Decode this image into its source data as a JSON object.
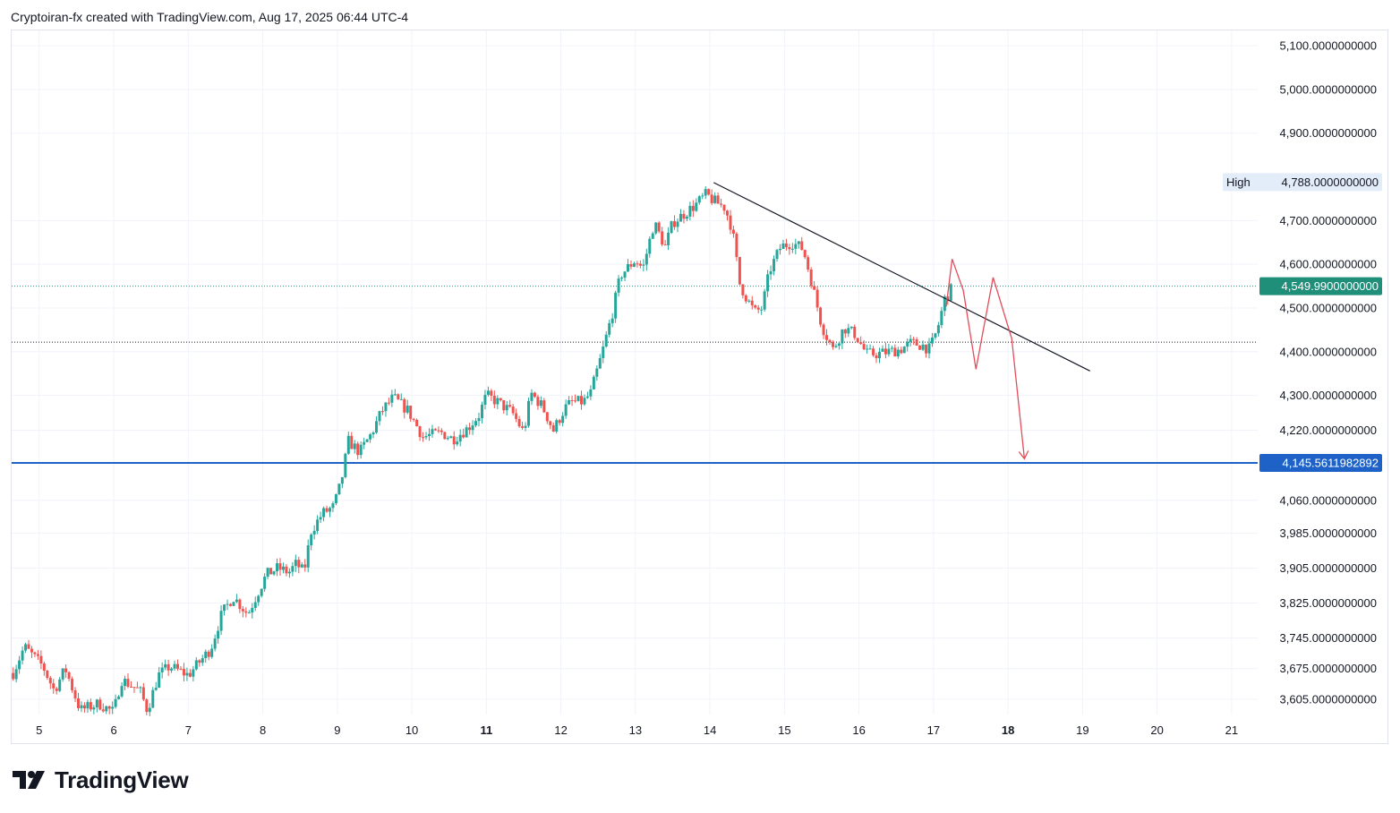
{
  "header": {
    "attribution": "Cryptoiran-fx created with TradingView.com, Aug 17, 2025 06:44 UTC-4"
  },
  "brand": {
    "name": "TradingView"
  },
  "colors": {
    "up": "#26a69a",
    "down": "#ef5350",
    "support_line": "#1e62c7",
    "trendline": "#131722",
    "projection": "#e34c5a",
    "last_price_badge": "#1f8f7a",
    "high_badge_bg": "#e3ecf9",
    "grid": "#f0f3fa"
  },
  "chart_data": {
    "type": "candlestick",
    "ylim": [
      3570,
      5135
    ],
    "y_ticks": [
      {
        "value": 5100,
        "label": "5,100.0000000000"
      },
      {
        "value": 5000,
        "label": "5,000.0000000000"
      },
      {
        "value": 4900,
        "label": "4,900.0000000000"
      },
      {
        "value": 4700,
        "label": "4,700.0000000000"
      },
      {
        "value": 4600,
        "label": "4,600.0000000000"
      },
      {
        "value": 4500,
        "label": "4,500.0000000000"
      },
      {
        "value": 4400,
        "label": "4,400.0000000000"
      },
      {
        "value": 4300,
        "label": "4,300.0000000000"
      },
      {
        "value": 4220,
        "label": "4,220.0000000000"
      },
      {
        "value": 4060,
        "label": "4,060.0000000000"
      },
      {
        "value": 3985,
        "label": "3,985.0000000000"
      },
      {
        "value": 3905,
        "label": "3,905.0000000000"
      },
      {
        "value": 3825,
        "label": "3,825.0000000000"
      },
      {
        "value": 3745,
        "label": "3,745.0000000000"
      },
      {
        "value": 3675,
        "label": "3,675.0000000000"
      },
      {
        "value": 3605,
        "label": "3,605.0000000000"
      }
    ],
    "x_ticks": [
      {
        "day": 5,
        "label": "5",
        "bold": false
      },
      {
        "day": 6,
        "label": "6",
        "bold": false
      },
      {
        "day": 7,
        "label": "7",
        "bold": false
      },
      {
        "day": 8,
        "label": "8",
        "bold": false
      },
      {
        "day": 9,
        "label": "9",
        "bold": false
      },
      {
        "day": 10,
        "label": "10",
        "bold": false
      },
      {
        "day": 11,
        "label": "11",
        "bold": true
      },
      {
        "day": 12,
        "label": "12",
        "bold": false
      },
      {
        "day": 13,
        "label": "13",
        "bold": false
      },
      {
        "day": 14,
        "label": "14",
        "bold": false
      },
      {
        "day": 15,
        "label": "15",
        "bold": false
      },
      {
        "day": 16,
        "label": "16",
        "bold": false
      },
      {
        "day": 17,
        "label": "17",
        "bold": false
      },
      {
        "day": 18,
        "label": "18",
        "bold": true
      },
      {
        "day": 19,
        "label": "19",
        "bold": false
      },
      {
        "day": 20,
        "label": "20",
        "bold": false
      },
      {
        "day": 21,
        "label": "21",
        "bold": false
      }
    ],
    "xlim_days": [
      4.63,
      21.35
    ],
    "price_path": [
      [
        4.65,
        3665
      ],
      [
        4.8,
        3725
      ],
      [
        5.05,
        3680
      ],
      [
        5.2,
        3625
      ],
      [
        5.35,
        3675
      ],
      [
        5.55,
        3580
      ],
      [
        5.8,
        3595
      ],
      [
        6.0,
        3575
      ],
      [
        6.1,
        3650
      ],
      [
        6.35,
        3625
      ],
      [
        6.45,
        3580
      ],
      [
        6.6,
        3660
      ],
      [
        6.75,
        3680
      ],
      [
        7.0,
        3660
      ],
      [
        7.2,
        3700
      ],
      [
        7.3,
        3720
      ],
      [
        7.45,
        3800
      ],
      [
        7.6,
        3840
      ],
      [
        7.8,
        3800
      ],
      [
        7.95,
        3855
      ],
      [
        8.05,
        3890
      ],
      [
        8.2,
        3905
      ],
      [
        8.35,
        3895
      ],
      [
        8.45,
        3915
      ],
      [
        8.55,
        3895
      ],
      [
        8.65,
        3990
      ],
      [
        8.8,
        4030
      ],
      [
        8.95,
        4045
      ],
      [
        9.05,
        4100
      ],
      [
        9.15,
        4195
      ],
      [
        9.3,
        4170
      ],
      [
        9.45,
        4210
      ],
      [
        9.6,
        4265
      ],
      [
        9.75,
        4295
      ],
      [
        9.95,
        4265
      ],
      [
        10.15,
        4205
      ],
      [
        10.4,
        4215
      ],
      [
        10.55,
        4200
      ],
      [
        10.75,
        4225
      ],
      [
        10.9,
        4255
      ],
      [
        11.0,
        4300
      ],
      [
        11.15,
        4285
      ],
      [
        11.35,
        4260
      ],
      [
        11.5,
        4215
      ],
      [
        11.6,
        4305
      ],
      [
        11.75,
        4275
      ],
      [
        11.9,
        4220
      ],
      [
        12.05,
        4270
      ],
      [
        12.15,
        4285
      ],
      [
        12.3,
        4285
      ],
      [
        12.4,
        4305
      ],
      [
        12.55,
        4395
      ],
      [
        12.7,
        4495
      ],
      [
        12.8,
        4575
      ],
      [
        13.0,
        4610
      ],
      [
        13.1,
        4590
      ],
      [
        13.25,
        4695
      ],
      [
        13.4,
        4640
      ],
      [
        13.5,
        4695
      ],
      [
        13.65,
        4715
      ],
      [
        13.8,
        4735
      ],
      [
        13.95,
        4760
      ],
      [
        14.05,
        4745
      ],
      [
        14.2,
        4730
      ],
      [
        14.3,
        4680
      ],
      [
        14.4,
        4555
      ],
      [
        14.5,
        4520
      ],
      [
        14.6,
        4490
      ],
      [
        14.7,
        4500
      ],
      [
        14.8,
        4585
      ],
      [
        14.95,
        4640
      ],
      [
        15.1,
        4650
      ],
      [
        15.25,
        4635
      ],
      [
        15.35,
        4570
      ],
      [
        15.5,
        4460
      ],
      [
        15.65,
        4405
      ],
      [
        15.8,
        4455
      ],
      [
        15.95,
        4440
      ],
      [
        16.1,
        4395
      ],
      [
        16.25,
        4395
      ],
      [
        16.4,
        4400
      ],
      [
        16.55,
        4405
      ],
      [
        16.7,
        4420
      ],
      [
        16.85,
        4415
      ],
      [
        16.95,
        4405
      ],
      [
        17.05,
        4450
      ],
      [
        17.15,
        4520
      ],
      [
        17.27,
        4550
      ]
    ],
    "annotations": {
      "high": {
        "label": "High",
        "value_label": "4,788.0000000000",
        "value": 4788
      },
      "last_price": {
        "label": "4,549.9900000000",
        "value": 4549.99
      },
      "support": {
        "label": "4,145.5611982892",
        "value": 4145.5611982892
      },
      "dotted_level": {
        "value": 4422
      },
      "trendline": {
        "from": [
          14.05,
          4787
        ],
        "to": [
          19.1,
          4356
        ]
      },
      "projection_path": [
        [
          17.17,
          4503
        ],
        [
          17.25,
          4612
        ],
        [
          17.4,
          4540
        ],
        [
          17.57,
          4360
        ],
        [
          17.8,
          4570
        ],
        [
          18.05,
          4430
        ],
        [
          18.22,
          4155
        ]
      ]
    }
  }
}
